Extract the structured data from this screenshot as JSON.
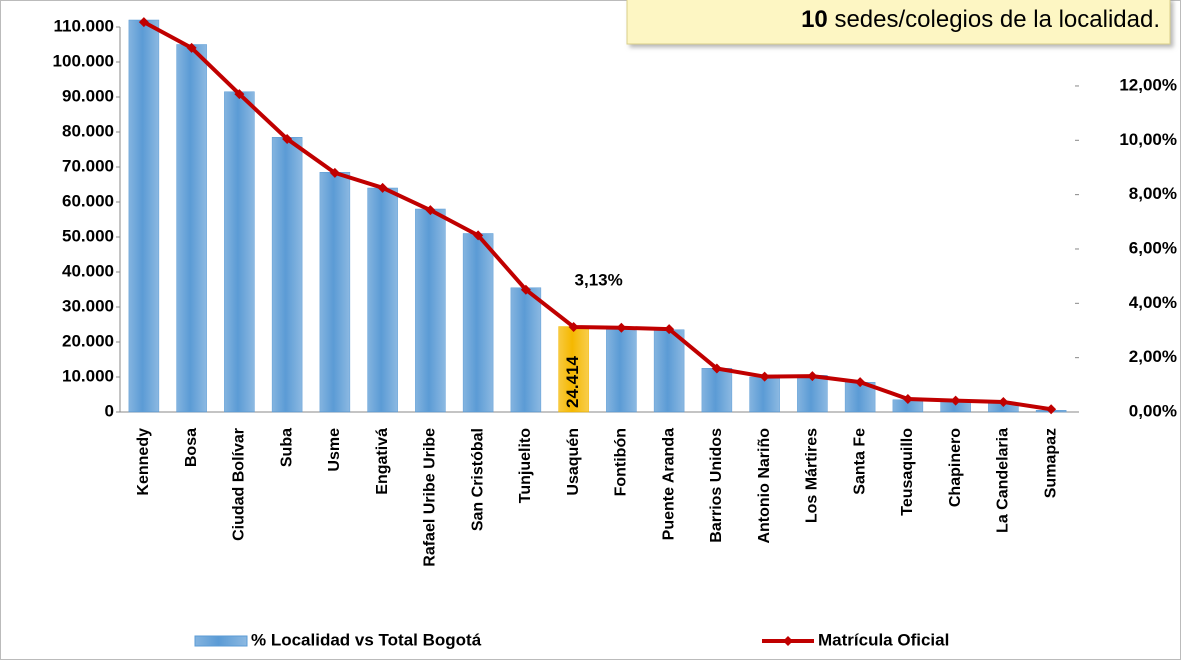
{
  "chart_data": {
    "type": "bar_line",
    "annotation": {
      "bold": "10",
      "text": " sedes/colegios de la localidad."
    },
    "categories": [
      "Kennedy",
      "Bosa",
      "Ciudad Bolívar",
      "Suba",
      "Usme",
      "Engativá",
      "Rafael Uribe Uribe",
      "San Cristóbal",
      "Tunjuelito",
      "Usaquén",
      "Fontibón",
      "Puente Aranda",
      "Barrios Unidos",
      "Antonio Nariño",
      "Los Mártires",
      "Santa Fe",
      "Teusaquillo",
      "Chapinero",
      "La Candelaria",
      "Sumapaz"
    ],
    "series": [
      {
        "name": "% Localidad vs Total Bogotá",
        "type": "bar",
        "axis": "y",
        "color": "#5b9bd5",
        "colors": [
          "#5b9bd5",
          "#5b9bd5",
          "#5b9bd5",
          "#5b9bd5",
          "#5b9bd5",
          "#5b9bd5",
          "#5b9bd5",
          "#5b9bd5",
          "#5b9bd5",
          "#f5b800",
          "#5b9bd5",
          "#5b9bd5",
          "#5b9bd5",
          "#5b9bd5",
          "#5b9bd5",
          "#5b9bd5",
          "#5b9bd5",
          "#5b9bd5",
          "#5b9bd5",
          "#5b9bd5"
        ],
        "values": [
          112000,
          105000,
          91500,
          78500,
          68500,
          64000,
          58000,
          51000,
          35500,
          24414,
          24000,
          23500,
          12500,
          10000,
          10500,
          8500,
          3500,
          3000,
          2500,
          500
        ],
        "value_labels": [
          null,
          null,
          null,
          null,
          null,
          null,
          null,
          null,
          null,
          "24.414",
          null,
          null,
          null,
          null,
          null,
          null,
          null,
          null,
          null,
          null
        ]
      },
      {
        "name": "Matrícula Oficial",
        "type": "line",
        "axis": "y2",
        "color": "#c00000",
        "values": [
          14.35,
          13.4,
          11.7,
          10.05,
          8.8,
          8.25,
          7.43,
          6.5,
          4.5,
          3.13,
          3.1,
          3.05,
          1.6,
          1.3,
          1.32,
          1.1,
          0.48,
          0.42,
          0.37,
          0.1
        ],
        "value_labels": [
          null,
          null,
          null,
          null,
          null,
          null,
          null,
          null,
          null,
          "3,13%",
          null,
          null,
          null,
          null,
          null,
          null,
          null,
          null,
          null,
          null
        ]
      }
    ],
    "ylim": [
      0,
      110000
    ],
    "yticks": [
      0,
      {
        "value": 10000,
        "label": "10.000"
      },
      {
        "value": 20000,
        "label": "20.000"
      },
      {
        "value": 30000,
        "label": "30.000"
      },
      {
        "value": 40000,
        "label": "40.000"
      },
      {
        "value": 50000,
        "label": "50.000"
      },
      {
        "value": 60000,
        "label": "60.000"
      },
      {
        "value": 70000,
        "label": "70.000"
      },
      {
        "value": 80000,
        "label": "80.000"
      },
      {
        "value": 90000,
        "label": "90.000"
      },
      {
        "value": 100000,
        "label": "100.000"
      },
      {
        "value": 110000,
        "label": "110.000"
      }
    ],
    "y2lim": [
      0,
      14.17
    ],
    "y2ticks": [
      {
        "value": 0,
        "label": "0,00%"
      },
      {
        "value": 2,
        "label": "2,00%"
      },
      {
        "value": 4,
        "label": "4,00%"
      },
      {
        "value": 6,
        "label": "6,00%"
      },
      {
        "value": 8,
        "label": "8,00%"
      },
      {
        "value": 10,
        "label": "10,00%"
      },
      {
        "value": 12,
        "label": "12,00%"
      }
    ],
    "legend": "bottom"
  }
}
